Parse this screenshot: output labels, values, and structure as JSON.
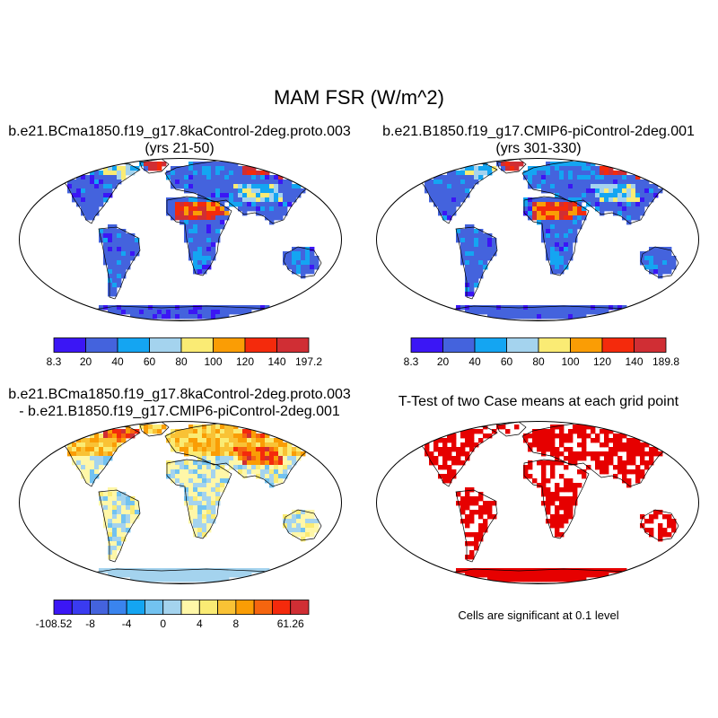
{
  "main_title": "MAM FSR (W/m^2)",
  "panels": [
    {
      "title_line1": "b.e21.BCma1850.f19_g17.8kaControl-2deg.proto.003",
      "title_line2": "(yrs 21-50)",
      "colorbar": {
        "colors": [
          "#3B16F5",
          "#4463DD",
          "#14A5F2",
          "#A4D3EE",
          "#FAEB74",
          "#FA9D05",
          "#F42A0C",
          "#D02E34"
        ],
        "labels": [
          "8.3",
          "20",
          "40",
          "60",
          "80",
          "100",
          "120",
          "140",
          "197.2"
        ]
      }
    },
    {
      "title_line1": "b.e21.B1850.f19_g17.CMIP6-piControl-2deg.001",
      "title_line2": "(yrs 301-330)",
      "colorbar": {
        "colors": [
          "#3B16F5",
          "#4463DD",
          "#14A5F2",
          "#A4D3EE",
          "#FAEB74",
          "#FA9D05",
          "#F42A0C",
          "#D02E34"
        ],
        "labels": [
          "8.3",
          "20",
          "40",
          "60",
          "80",
          "100",
          "120",
          "140",
          "189.8"
        ]
      }
    },
    {
      "title_line1": "b.e21.BCma1850.f19_g17.8kaControl-2deg.proto.003",
      "title_line2": "- b.e21.B1850.f19_g17.CMIP6-piControl-2deg.001",
      "colorbar": {
        "colors": [
          "#3B16F5",
          "#3A3BF0",
          "#4463DD",
          "#3A84EE",
          "#14A5F2",
          "#72C2F0",
          "#A4D3EE",
          "#FFF7A8",
          "#FAEB74",
          "#F9C235",
          "#FA9D05",
          "#F5650F",
          "#F42A0C",
          "#D02E34"
        ],
        "labels": [
          "-108.52",
          "",
          "-8",
          "",
          "-4",
          "",
          "0",
          "",
          "4",
          "",
          "8",
          "",
          "",
          "61.26"
        ]
      }
    },
    {
      "title_line1": "T-Test of two Case means at each grid point",
      "note": "Cells are significant at 0.1 level",
      "significant_color": "#E60000"
    }
  ]
}
